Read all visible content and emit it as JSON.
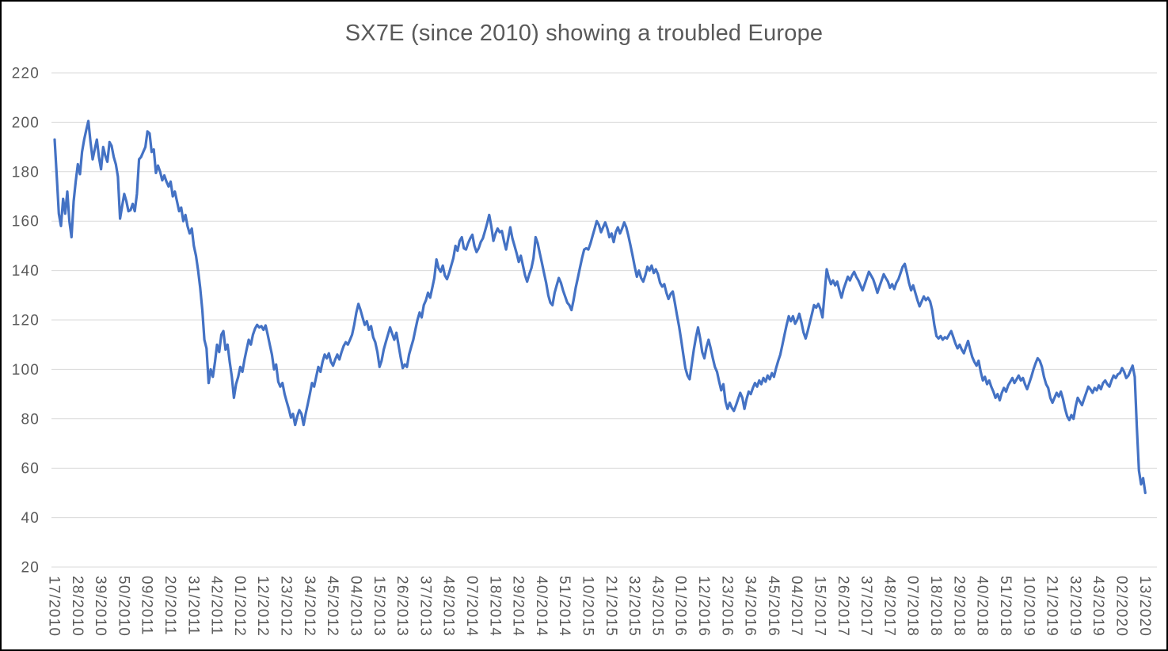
{
  "title": "SX7E (since 2010) showing a troubled Europe",
  "chart_data": {
    "type": "line",
    "title": "SX7E (since 2010) showing a troubled Europe",
    "x_unit": "week/year",
    "x_label_every": 11,
    "x_labels": [
      "17/2010",
      "28/2010",
      "39/2010",
      "50/2010",
      "09/2011",
      "20/2011",
      "31/2011",
      "42/2011",
      "01/2012",
      "12/2012",
      "23/2012",
      "34/2012",
      "45/2012",
      "04/2013",
      "15/2013",
      "26/2013",
      "37/2013",
      "48/2013",
      "07/2014",
      "18/2014",
      "29/2014",
      "40/2014",
      "51/2014",
      "10/2015",
      "21/2015",
      "32/2015",
      "43/2015",
      "01/2016",
      "12/2016",
      "23/2016",
      "34/2016",
      "45/2016",
      "04/2017",
      "15/2017",
      "26/2017",
      "37/2017",
      "48/2017",
      "07/2018",
      "18/2018",
      "29/2018",
      "40/2018",
      "51/2018",
      "10/2019",
      "21/2019",
      "32/2019",
      "43/2019",
      "02/2020",
      "13/2020"
    ],
    "ylim": [
      20,
      220
    ],
    "y_ticks": [
      220,
      200,
      180,
      160,
      140,
      120,
      100,
      80,
      60,
      40,
      20
    ],
    "grid": true,
    "legend": "none",
    "line_color": "#4472C4",
    "grid_color": "#D9D9D9",
    "text_color": "#595959",
    "series": [
      {
        "name": "SX7E",
        "values": [
          193,
          178,
          163,
          158,
          169,
          163,
          172,
          160,
          153.5,
          168,
          176,
          183,
          179,
          188,
          193,
          197,
          200.5,
          192,
          185,
          189,
          193,
          186,
          181,
          190,
          186.5,
          184,
          192,
          190.5,
          186,
          183,
          178,
          161,
          166,
          171,
          168,
          164,
          164.5,
          167,
          164,
          171,
          185,
          186,
          188,
          190,
          196.3,
          195.5,
          188,
          189,
          179.5,
          182.5,
          180,
          176.5,
          178.5,
          176,
          174,
          176,
          170,
          172,
          168,
          164,
          165.5,
          160,
          162.5,
          158,
          155,
          157,
          150,
          146,
          140,
          133,
          124,
          112,
          108.5,
          94.5,
          100,
          97,
          103,
          110,
          107,
          114,
          115.5,
          108,
          110,
          103,
          97,
          88.5,
          94,
          97,
          101,
          99,
          104,
          108,
          112,
          110,
          114,
          116.5,
          118,
          117,
          117.5,
          116,
          117.8,
          114,
          110,
          106,
          100,
          102,
          95,
          93,
          94.5,
          90,
          87,
          84,
          80.5,
          82,
          77.5,
          81,
          83.5,
          82,
          77.5,
          82,
          86,
          90,
          94.5,
          93,
          97,
          101,
          99,
          103,
          106,
          104.5,
          106.5,
          103,
          101.5,
          104,
          106,
          104,
          107,
          109.5,
          111,
          110,
          112,
          114,
          118,
          123,
          126.5,
          124,
          121,
          118,
          119.5,
          116,
          117.5,
          113,
          111,
          107,
          101,
          103.5,
          108,
          111,
          114,
          117,
          114.5,
          112,
          114.8,
          110,
          105,
          100.5,
          102,
          101,
          106,
          109,
          112,
          116,
          120,
          123,
          121,
          126,
          128,
          131,
          129,
          133,
          137,
          144.5,
          141,
          139.5,
          142,
          138,
          136.5,
          139,
          142,
          145,
          150,
          148,
          152,
          153.5,
          149,
          148.5,
          151,
          153,
          154.5,
          150,
          147.5,
          149,
          151.5,
          153,
          156,
          159,
          162.5,
          158,
          152,
          155,
          157,
          155.5,
          156,
          152,
          148.5,
          153,
          157.5,
          153,
          150,
          147,
          143.5,
          146,
          142,
          138,
          135.5,
          138.5,
          141,
          145,
          153.5,
          151,
          147,
          143,
          139,
          135,
          130,
          127,
          126,
          131,
          134,
          137,
          135,
          132,
          129.5,
          127,
          126,
          124,
          128,
          133,
          137,
          141,
          145,
          148.5,
          149,
          148.5,
          151,
          154,
          157,
          160,
          158.5,
          155.5,
          157.5,
          159.5,
          157,
          153.5,
          155,
          151.5,
          155.5,
          157.5,
          155,
          157,
          159.5,
          157.5,
          154,
          150,
          146,
          141.5,
          137.5,
          140,
          137,
          135.5,
          138,
          141.5,
          140,
          142,
          139,
          140.5,
          138.5,
          135,
          133.5,
          134.5,
          131,
          128.5,
          130.5,
          131.5,
          127,
          122,
          117.5,
          112,
          106,
          100.5,
          97.5,
          96,
          102,
          108,
          113,
          117,
          112.5,
          107,
          104.5,
          109,
          112,
          108.5,
          104.5,
          101,
          99,
          95,
          91.5,
          94,
          87,
          84,
          86.5,
          84.5,
          83.2,
          85.5,
          88,
          90.5,
          88.5,
          84,
          88,
          91,
          90,
          92.5,
          94.5,
          93,
          95.5,
          94,
          96.5,
          95,
          97.5,
          96,
          98.5,
          97,
          100.5,
          103.5,
          106,
          110,
          114,
          118,
          121.5,
          119.5,
          121.5,
          118.5,
          120,
          122.5,
          119,
          115,
          112.5,
          115.5,
          119,
          122.5,
          126,
          125,
          126.5,
          124.5,
          121,
          131,
          140.5,
          137,
          134.5,
          136,
          134,
          135.5,
          132,
          129,
          132.5,
          135,
          137.5,
          136,
          138,
          139.5,
          137.5,
          136,
          134,
          132,
          134.5,
          137,
          139.5,
          138,
          136.5,
          134,
          131,
          133.5,
          136,
          138.5,
          137,
          135.5,
          133,
          134.5,
          132.5,
          135,
          136.5,
          139,
          141.5,
          142.7,
          139,
          135,
          132,
          134,
          131,
          128,
          125.5,
          127.5,
          129.5,
          128,
          129,
          127.5,
          124,
          118,
          113.5,
          112.5,
          113.5,
          112,
          113,
          112.5,
          114,
          115.5,
          113,
          110.5,
          108.5,
          110,
          108,
          106.5,
          109,
          111.5,
          108,
          105,
          103,
          101.5,
          103.5,
          99,
          95.5,
          97,
          94,
          95.5,
          93,
          91,
          88.5,
          90,
          87.5,
          90.5,
          92.5,
          91,
          93.5,
          95,
          96.5,
          94.5,
          96,
          97.5,
          95.5,
          96.5,
          94,
          92,
          94.5,
          97,
          100,
          102.5,
          104.5,
          103.5,
          101,
          97,
          94,
          92.5,
          88.5,
          86.5,
          88.5,
          90.5,
          89,
          91,
          88,
          84,
          81,
          79.5,
          81.5,
          80,
          85,
          88.5,
          87,
          85.5,
          88,
          90.5,
          93,
          92,
          90.5,
          92.5,
          91.5,
          93.5,
          92,
          94.5,
          95.5,
          94,
          93,
          95.5,
          97.5,
          96.5,
          98,
          98.5,
          100.5,
          99,
          96.5,
          97.5,
          99.5,
          101.5,
          97,
          77,
          59,
          53.5,
          56,
          50
        ]
      }
    ]
  }
}
